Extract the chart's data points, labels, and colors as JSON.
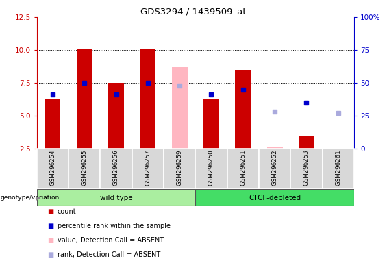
{
  "title": "GDS3294 / 1439509_at",
  "samples": [
    "GSM296254",
    "GSM296255",
    "GSM296256",
    "GSM296257",
    "GSM296259",
    "GSM296250",
    "GSM296251",
    "GSM296252",
    "GSM296253",
    "GSM296261"
  ],
  "count_values": [
    6.3,
    10.1,
    7.5,
    10.1,
    null,
    6.3,
    8.5,
    null,
    3.5,
    null
  ],
  "count_absent": [
    null,
    null,
    null,
    null,
    8.7,
    null,
    null,
    2.6,
    null,
    2.5
  ],
  "rank_values": [
    6.6,
    7.5,
    6.6,
    7.5,
    null,
    6.6,
    7.0,
    null,
    6.0,
    null
  ],
  "rank_absent": [
    null,
    null,
    null,
    null,
    7.3,
    null,
    null,
    5.3,
    null,
    5.2
  ],
  "ylim_left": [
    2.5,
    12.5
  ],
  "ylim_right": [
    0,
    100
  ],
  "yticks_left": [
    2.5,
    5.0,
    7.5,
    10.0,
    12.5
  ],
  "yticks_right": [
    0,
    25,
    50,
    75,
    100
  ],
  "bar_color_count": "#CC0000",
  "bar_color_absent": "#FFB6C1",
  "dot_color_rank": "#0000CC",
  "dot_color_rank_absent": "#AAAADD",
  "left_axis_color": "#CC0000",
  "right_axis_color": "#0000CC",
  "wt_color": "#AAEEA0",
  "ctcf_color": "#44DD66",
  "gray_box": "#D8D8D8",
  "bar_width": 0.5,
  "wt_samples": 5,
  "ctcf_samples": 5
}
